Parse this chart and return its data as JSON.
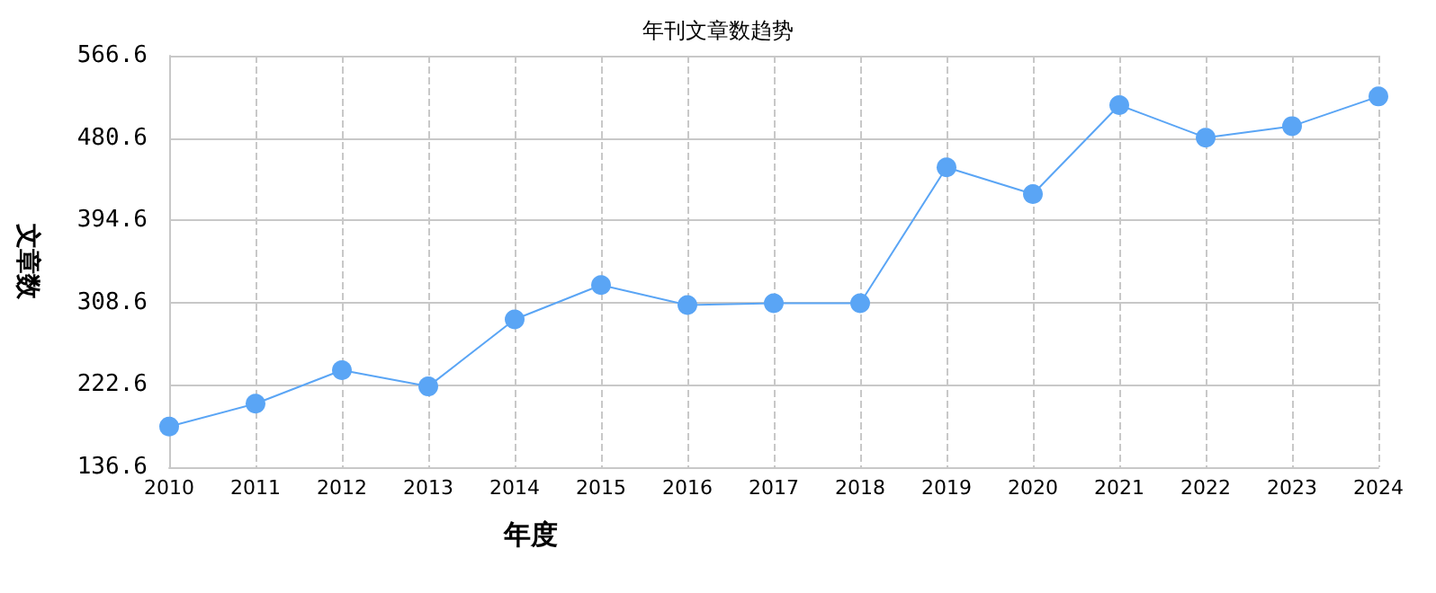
{
  "chart_data": {
    "type": "line",
    "title": "年刊文章数趋势",
    "xlabel": "年度",
    "ylabel": "文章数",
    "categories": [
      "2010",
      "2011",
      "2012",
      "2013",
      "2014",
      "2015",
      "2016",
      "2017",
      "2018",
      "2019",
      "2020",
      "2021",
      "2022",
      "2023",
      "2024"
    ],
    "series": [
      {
        "color": "#5aa5f5",
        "values": [
          179,
          203,
          238,
          221,
          291,
          327,
          306,
          308,
          308,
          450,
          422,
          515,
          481,
          493,
          524
        ]
      }
    ],
    "ylim": [
      136.6,
      566.6
    ],
    "yticks": [
      136.6,
      222.6,
      308.6,
      394.6,
      480.6,
      566.6
    ],
    "grid": true,
    "marker": "circle",
    "line_style": "solid"
  }
}
